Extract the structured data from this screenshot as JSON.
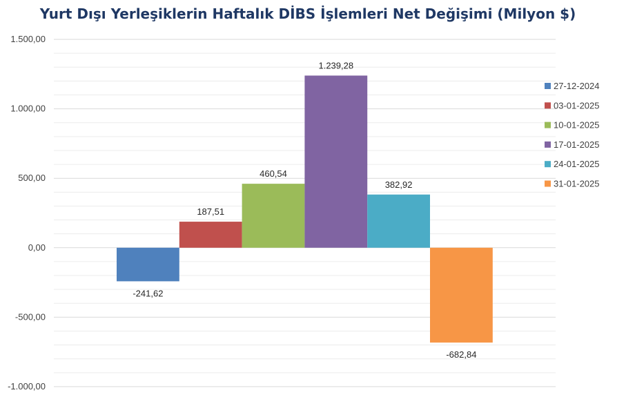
{
  "chart_data": {
    "type": "bar",
    "title": "Yurt Dışı Yerleşiklerin Haftalık DİBS İşlemleri Net Değişimi (Milyon $)",
    "xlabel": "",
    "ylabel": "",
    "ylim": [
      -1000,
      1500
    ],
    "yticks": [
      1500,
      1000,
      500,
      0,
      -500,
      -1000
    ],
    "ytick_labels": [
      "1.500,00",
      "1.000,00",
      "500,00",
      "0,00",
      "-500,00",
      "-1.000,00"
    ],
    "grid": true,
    "legend_position": "right",
    "series": [
      {
        "name": "27-12-2024",
        "value": -241.62,
        "label": "-241,62",
        "color": "#4f81bd"
      },
      {
        "name": "03-01-2025",
        "value": 187.51,
        "label": "187,51",
        "color": "#c0504d"
      },
      {
        "name": "10-01-2025",
        "value": 460.54,
        "label": "460,54",
        "color": "#9bbb59"
      },
      {
        "name": "17-01-2025",
        "value": 1239.28,
        "label": "1.239,28",
        "color": "#8064a2"
      },
      {
        "name": "24-01-2025",
        "value": 382.92,
        "label": "382,92",
        "color": "#4bacc6"
      },
      {
        "name": "31-01-2025",
        "value": -682.84,
        "label": "-682,84",
        "color": "#f79646"
      }
    ]
  }
}
